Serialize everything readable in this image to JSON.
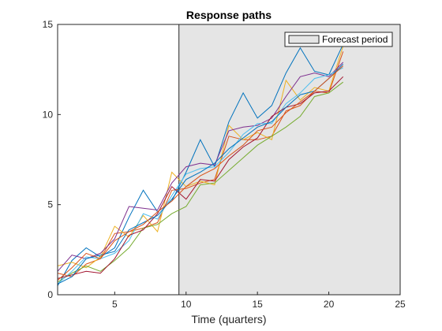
{
  "chart_data": {
    "type": "line",
    "title": "Response paths",
    "xlabel": "Time (quarters)",
    "ylabel": "",
    "xlim": [
      1,
      25
    ],
    "ylim": [
      0,
      15
    ],
    "xticks": [
      5,
      10,
      15,
      20,
      25
    ],
    "yticks": [
      0,
      5,
      10,
      15
    ],
    "grid": false,
    "legend": {
      "placement": "top-right",
      "entries": [
        "Forecast period"
      ]
    },
    "shaded_region": {
      "label": "Forecast period",
      "x_start": 9.5,
      "x_end": 25,
      "fill": "#e5e5e5",
      "edge": "#262626"
    },
    "x": [
      1,
      2,
      3,
      4,
      5,
      6,
      7,
      8,
      9,
      10,
      11,
      12,
      13,
      14,
      15,
      16,
      17,
      18,
      19,
      20,
      21
    ],
    "series": [
      {
        "color": "#0072BD",
        "values": [
          0.5,
          1.9,
          2.6,
          2.1,
          2.6,
          4.3,
          5.8,
          4.6,
          5.2,
          6.8,
          8.6,
          7.1,
          9.6,
          11.2,
          9.8,
          10.5,
          12.3,
          13.7,
          12.4,
          12.2,
          13.9
        ]
      },
      {
        "color": "#D95319",
        "values": [
          1.2,
          1.0,
          1.7,
          2.0,
          3.4,
          3.5,
          3.7,
          4.0,
          5.8,
          5.9,
          6.2,
          6.4,
          8.8,
          8.6,
          8.6,
          8.8,
          10.2,
          10.5,
          11.3,
          11.2,
          13.5
        ]
      },
      {
        "color": "#EDB120",
        "values": [
          1.6,
          1.8,
          1.5,
          2.1,
          3.8,
          3.2,
          4.4,
          3.5,
          6.8,
          6.0,
          6.3,
          6.1,
          9.4,
          8.6,
          9.0,
          8.6,
          11.9,
          10.8,
          11.5,
          11.3,
          13.8
        ]
      },
      {
        "color": "#7E2F8E",
        "values": [
          1.3,
          2.2,
          2.0,
          2.3,
          3.1,
          4.9,
          4.8,
          4.7,
          6.2,
          7.1,
          7.3,
          7.2,
          9.1,
          9.3,
          9.4,
          9.8,
          11.0,
          12.1,
          12.3,
          12.1,
          12.9
        ]
      },
      {
        "color": "#77AC30",
        "values": [
          0.7,
          1.2,
          1.6,
          1.3,
          1.9,
          2.6,
          3.7,
          3.9,
          4.5,
          4.9,
          6.1,
          6.2,
          6.9,
          7.6,
          8.3,
          8.8,
          9.3,
          9.9,
          11.0,
          11.2,
          11.8
        ]
      },
      {
        "color": "#4DBEEE",
        "values": [
          0.6,
          1.3,
          2.1,
          2.0,
          2.3,
          3.0,
          4.5,
          4.2,
          5.5,
          6.7,
          7.0,
          7.1,
          7.9,
          8.9,
          9.5,
          9.5,
          10.6,
          11.2,
          12.0,
          12.2,
          12.6
        ]
      },
      {
        "color": "#A2142F",
        "values": [
          0.9,
          1.1,
          1.3,
          1.2,
          2.0,
          3.3,
          3.6,
          4.5,
          6.0,
          5.3,
          6.4,
          6.3,
          7.5,
          8.2,
          8.7,
          9.9,
          10.4,
          10.6,
          11.2,
          11.3,
          12.1
        ]
      },
      {
        "color": "#0072BD",
        "values": [
          0.6,
          1.0,
          2.0,
          2.2,
          2.4,
          3.6,
          4.0,
          4.4,
          5.3,
          6.4,
          6.8,
          7.3,
          8.1,
          8.7,
          9.3,
          9.6,
          10.4,
          11.1,
          11.3,
          12.0,
          12.8
        ]
      },
      {
        "color": "#D95319",
        "values": [
          0.8,
          1.5,
          2.3,
          2.0,
          3.0,
          3.5,
          3.9,
          4.6,
          5.2,
          6.0,
          6.6,
          7.0,
          7.7,
          8.3,
          9.1,
          9.3,
          10.1,
          10.7,
          11.3,
          12.0,
          12.7
        ]
      }
    ]
  }
}
